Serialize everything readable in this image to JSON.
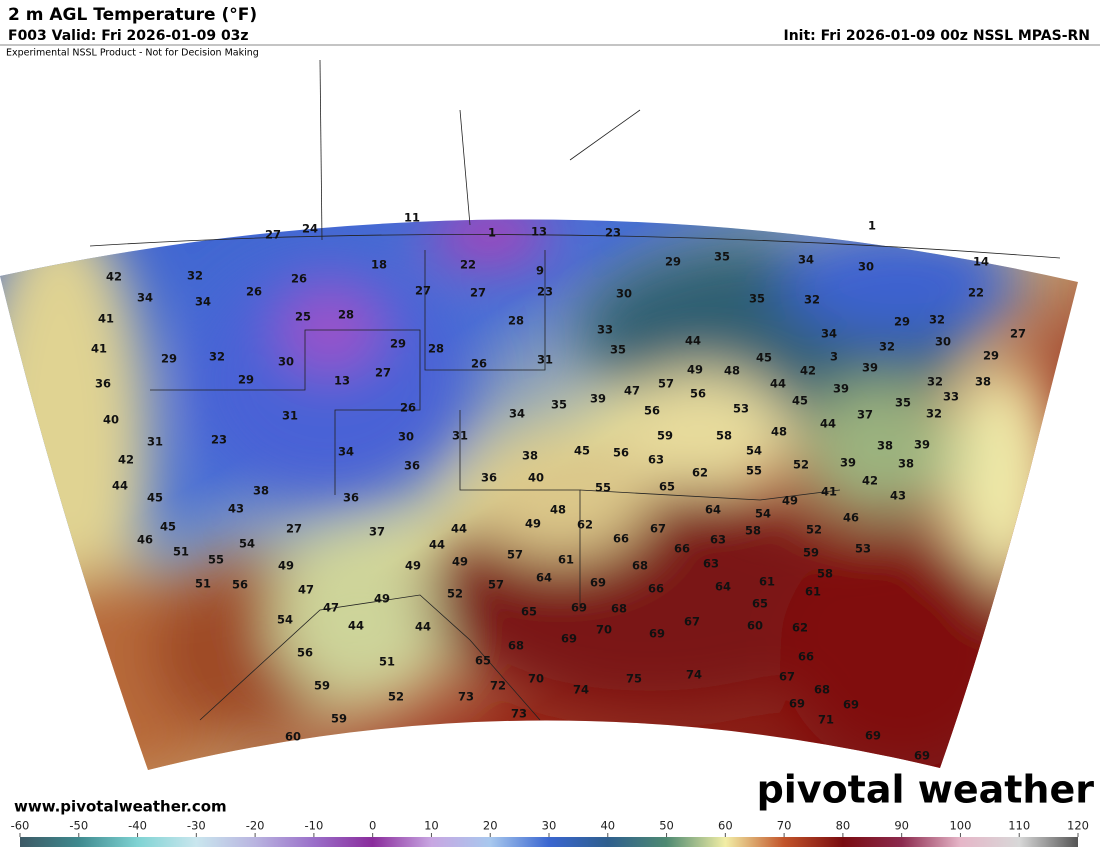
{
  "header": {
    "title": "2 m AGL Temperature (°F)",
    "valid": "F003 Valid: Fri 2026-01-09 03z",
    "init": "Init: Fri 2026-01-09 00z NSSL MPAS-RN",
    "disclaimer": "Experimental NSSL Product - Not for Decision Making"
  },
  "map": {
    "labels": [
      11,
      1,
      13,
      23,
      1,
      27,
      24,
      42,
      32,
      26,
      18,
      22,
      9,
      29,
      35,
      34,
      30,
      14,
      34,
      34,
      26,
      27,
      27,
      23,
      30,
      35,
      32,
      22,
      41,
      25,
      28,
      28,
      33,
      34,
      29,
      32,
      27,
      41,
      29,
      32,
      30,
      29,
      28,
      35,
      44,
      32,
      30,
      36,
      29,
      13,
      27,
      26,
      31,
      49,
      48,
      45,
      3,
      39,
      29,
      40,
      31,
      26,
      34,
      35,
      39,
      47,
      57,
      56,
      53,
      44,
      42,
      39,
      45,
      37,
      35,
      32,
      33,
      38,
      32,
      31,
      23,
      30,
      31,
      38,
      45,
      56,
      59,
      56,
      58,
      48,
      44,
      38,
      39,
      38,
      42,
      34,
      36,
      36,
      40,
      63,
      62,
      54,
      55,
      52,
      39,
      42,
      43,
      44,
      45,
      38,
      43,
      36,
      55,
      65,
      64,
      54,
      49,
      41,
      46,
      45,
      27,
      37,
      44,
      49,
      48,
      62,
      66,
      67,
      63,
      58,
      52,
      46,
      51,
      55,
      54,
      44,
      57,
      61,
      66,
      63,
      59,
      53,
      51,
      56,
      49,
      49,
      49,
      57,
      64,
      69,
      68,
      66,
      64,
      61,
      58,
      47,
      47,
      49,
      52,
      65,
      69,
      68,
      65,
      61,
      54,
      44,
      44,
      69,
      70,
      69,
      67,
      60,
      62,
      56,
      51,
      65,
      68,
      66,
      59,
      52,
      73,
      72,
      70,
      74,
      75,
      74,
      67,
      68,
      69,
      69,
      71,
      59,
      73,
      60,
      69,
      69
    ]
  },
  "colorbar": {
    "ticks": [
      -60,
      -50,
      -40,
      -30,
      -20,
      -10,
      0,
      10,
      20,
      30,
      40,
      50,
      60,
      70,
      80,
      90,
      100,
      110,
      120
    ],
    "colors": [
      "#3d5a66",
      "#3f8a8f",
      "#7fd3d3",
      "#c9e6ee",
      "#b9b4e0",
      "#9a6fc9",
      "#8a2c9c",
      "#c8a6e2",
      "#a8c8ee",
      "#3a66d0",
      "#2f5f8e",
      "#4e8a72",
      "#f2eea6",
      "#c2542a",
      "#7a0c10",
      "#8c2a4e",
      "#e6b6c8",
      "#d8d8d8",
      "#555555"
    ]
  },
  "footer": {
    "url": "www.pivotalweather.com",
    "logo": "pivotal weather"
  }
}
